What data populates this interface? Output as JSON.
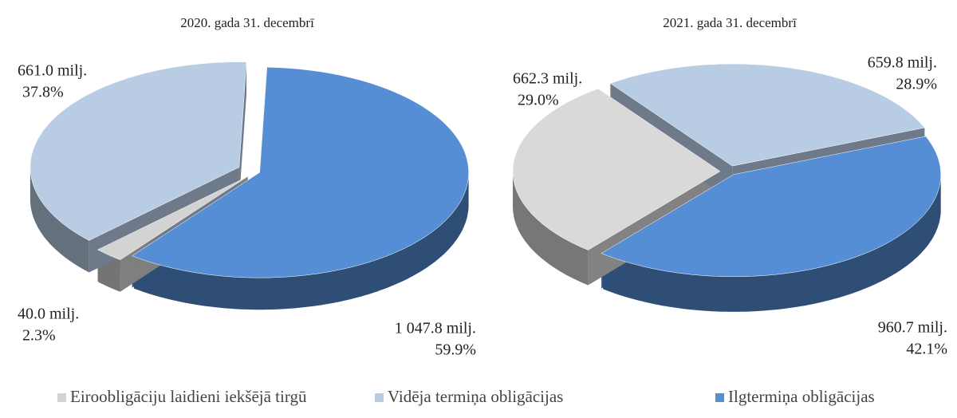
{
  "chart_data": [
    {
      "type": "pie",
      "title": "2020. gada 31. decembrī",
      "categories": [
        "Eiroobligāciju laidieni iekšējā tirgū",
        "Vidēja termiņa obligācijas",
        "Ilgtermiņa obligācijas"
      ],
      "values": [
        2.3,
        37.8,
        59.9
      ],
      "value_labels": [
        "2.3%",
        "37.8%",
        "59.9%"
      ],
      "amounts": [
        40.0,
        661.0,
        1047.8
      ],
      "amount_labels": [
        "40.0 milj.",
        "661.0 milj.",
        "1 047.8 milj."
      ],
      "colors": [
        "#d3d3d3",
        "#b8cce4",
        "#558ed5"
      ]
    },
    {
      "type": "pie",
      "title": "2021. gada 31. decembrī",
      "categories": [
        "Eiroobligāciju laidieni iekšējā tirgū",
        "Vidēja termiņa obligācijas",
        "Ilgtermiņa obligācijas"
      ],
      "values": [
        29.0,
        28.9,
        42.1
      ],
      "value_labels": [
        "29.0%",
        "28.9%",
        "42.1%"
      ],
      "amounts": [
        662.3,
        659.8,
        960.7
      ],
      "amount_labels": [
        "662.3 milj.",
        "659.8 milj.",
        "960.7 milj."
      ],
      "colors": [
        "#d9d9d9",
        "#b8cce4",
        "#558ed5"
      ]
    }
  ]
}
